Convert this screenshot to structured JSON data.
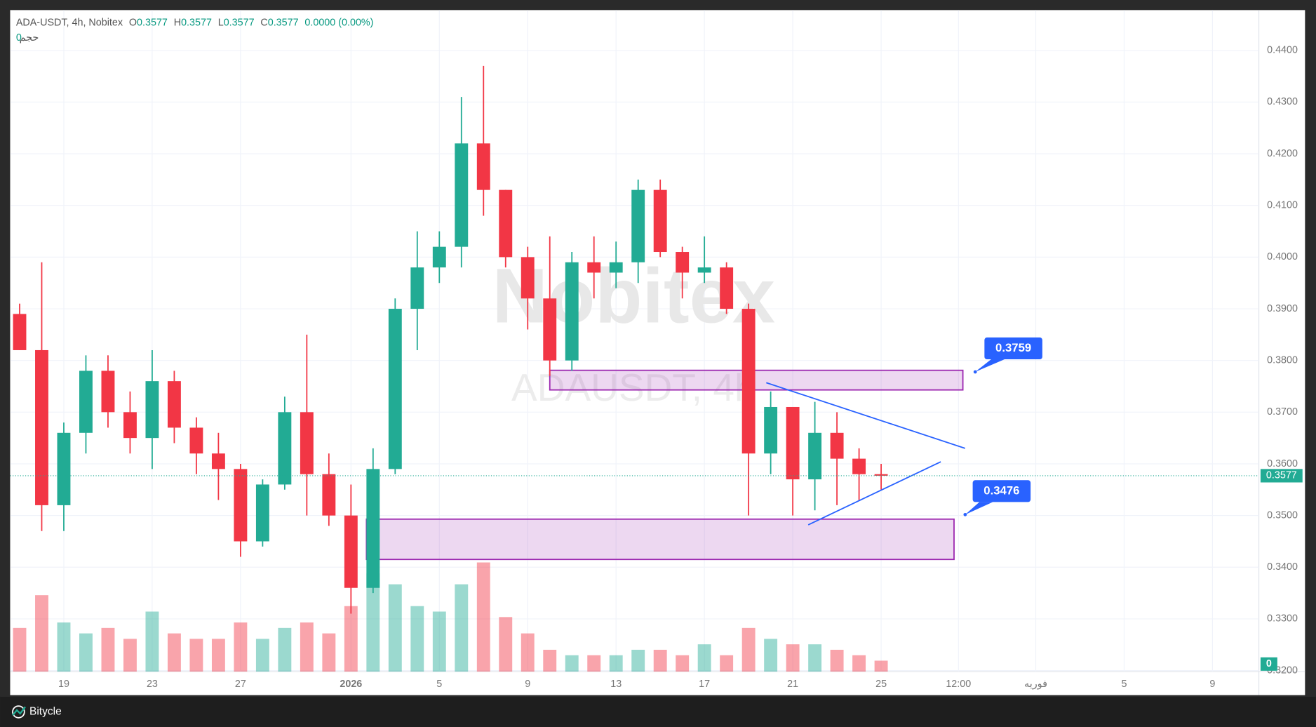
{
  "header": {
    "symbol": "ADA-USDT, 4h, Nobitex",
    "fields": [
      {
        "key": "O",
        "value": "0.3577"
      },
      {
        "key": "H",
        "value": "0.3577"
      },
      {
        "key": "L",
        "value": "0.3577"
      },
      {
        "key": "C",
        "value": "0.3577"
      }
    ],
    "change": "0.0000 (0.00%)",
    "volume_label": "حجم",
    "volume_value": "0"
  },
  "watermark": {
    "title": "Nobitex",
    "subtitle": "ADAUSDT, 4h"
  },
  "footer": {
    "brand": "Bitycle"
  },
  "chart_data": {
    "type": "candlestick",
    "up_color": "#22ab94",
    "down_color": "#f23645",
    "open": [
      0.389,
      0.382,
      0.352,
      0.366,
      0.378,
      0.37,
      0.365,
      0.376,
      0.367,
      0.362,
      0.359,
      0.345,
      0.356,
      0.37,
      0.358,
      0.35,
      0.336,
      0.359,
      0.39,
      0.398,
      0.402,
      0.422,
      0.413,
      0.4,
      0.392,
      0.38,
      0.399,
      0.397,
      0.399,
      0.413,
      0.401,
      0.397,
      0.398,
      0.39,
      0.362,
      0.371,
      0.357,
      0.366,
      0.361,
      0.358
    ],
    "high": [
      0.391,
      0.399,
      0.368,
      0.381,
      0.381,
      0.374,
      0.382,
      0.378,
      0.369,
      0.366,
      0.36,
      0.357,
      0.373,
      0.385,
      0.362,
      0.356,
      0.363,
      0.392,
      0.405,
      0.405,
      0.431,
      0.437,
      0.413,
      0.402,
      0.404,
      0.401,
      0.404,
      0.403,
      0.415,
      0.415,
      0.402,
      0.404,
      0.399,
      0.391,
      0.374,
      0.371,
      0.372,
      0.37,
      0.363,
      0.36
    ],
    "low": [
      0.382,
      0.347,
      0.347,
      0.362,
      0.367,
      0.362,
      0.359,
      0.364,
      0.358,
      0.353,
      0.342,
      0.344,
      0.355,
      0.35,
      0.348,
      0.331,
      0.335,
      0.358,
      0.382,
      0.395,
      0.398,
      0.408,
      0.398,
      0.386,
      0.377,
      0.378,
      0.392,
      0.394,
      0.395,
      0.4,
      0.392,
      0.395,
      0.389,
      0.35,
      0.358,
      0.35,
      0.351,
      0.352,
      0.353,
      0.355
    ],
    "close": [
      0.382,
      0.352,
      0.366,
      0.378,
      0.37,
      0.365,
      0.376,
      0.367,
      0.362,
      0.359,
      0.345,
      0.356,
      0.37,
      0.358,
      0.35,
      0.336,
      0.359,
      0.39,
      0.398,
      0.402,
      0.422,
      0.413,
      0.4,
      0.392,
      0.38,
      0.399,
      0.397,
      0.399,
      0.413,
      0.401,
      0.397,
      0.398,
      0.39,
      0.362,
      0.371,
      0.357,
      0.366,
      0.361,
      0.358,
      0.3577
    ],
    "volume": [
      40,
      70,
      45,
      35,
      40,
      30,
      55,
      35,
      30,
      30,
      45,
      30,
      40,
      45,
      35,
      60,
      90,
      80,
      60,
      55,
      80,
      100,
      50,
      35,
      20,
      15,
      15,
      15,
      20,
      20,
      15,
      25,
      15,
      40,
      30,
      25,
      25,
      20,
      15,
      10
    ],
    "xlim": [
      -0.43,
      56.1
    ],
    "xticks": [
      {
        "value": 2,
        "label": "19"
      },
      {
        "value": 6,
        "label": "23"
      },
      {
        "value": 10,
        "label": "27"
      },
      {
        "value": 15,
        "label": "2026"
      },
      {
        "value": 19,
        "label": "5"
      },
      {
        "value": 23,
        "label": "9"
      },
      {
        "value": 27,
        "label": "13"
      },
      {
        "value": 31,
        "label": "17"
      },
      {
        "value": 35,
        "label": "21"
      },
      {
        "value": 39,
        "label": "25"
      },
      {
        "value": 42.5,
        "label": "12:00"
      },
      {
        "value": 46,
        "label": "فوریه"
      },
      {
        "value": 50,
        "label": "5"
      },
      {
        "value": 54,
        "label": "9"
      }
    ],
    "ylim": [
      0.3198,
      0.4478
    ],
    "yticks": [
      {
        "value": 0.32,
        "label": "0.3200"
      },
      {
        "value": 0.33,
        "label": "0.3300"
      },
      {
        "value": 0.34,
        "label": "0.3400"
      },
      {
        "value": 0.35,
        "label": "0.3500"
      },
      {
        "value": 0.36,
        "label": "0.3600"
      },
      {
        "value": 0.37,
        "label": "0.3700"
      },
      {
        "value": 0.38,
        "label": "0.3800"
      },
      {
        "value": 0.39,
        "label": "0.3900"
      },
      {
        "value": 0.4,
        "label": "0.4000"
      },
      {
        "value": 0.41,
        "label": "0.4100"
      },
      {
        "value": 0.42,
        "label": "0.4200"
      },
      {
        "value": 0.43,
        "label": "0.4300"
      },
      {
        "value": 0.44,
        "label": "0.4400"
      }
    ],
    "grid": true,
    "last_price": 0.3577,
    "last_volume": 0,
    "zones": [
      {
        "xlim": [
          24.0,
          42.7
        ],
        "ylim": [
          0.3743,
          0.3781
        ]
      },
      {
        "xlim": [
          15.7,
          42.3
        ],
        "ylim": [
          0.3415,
          0.3493
        ]
      }
    ],
    "trendlines": [
      {
        "x": [
          33.8,
          42.8
        ],
        "y": [
          0.3757,
          0.363
        ]
      },
      {
        "x": [
          35.7,
          41.7
        ],
        "y": [
          0.3482,
          0.3604
        ]
      }
    ],
    "annotations": [
      "0.3759",
      "0.3476"
    ]
  }
}
